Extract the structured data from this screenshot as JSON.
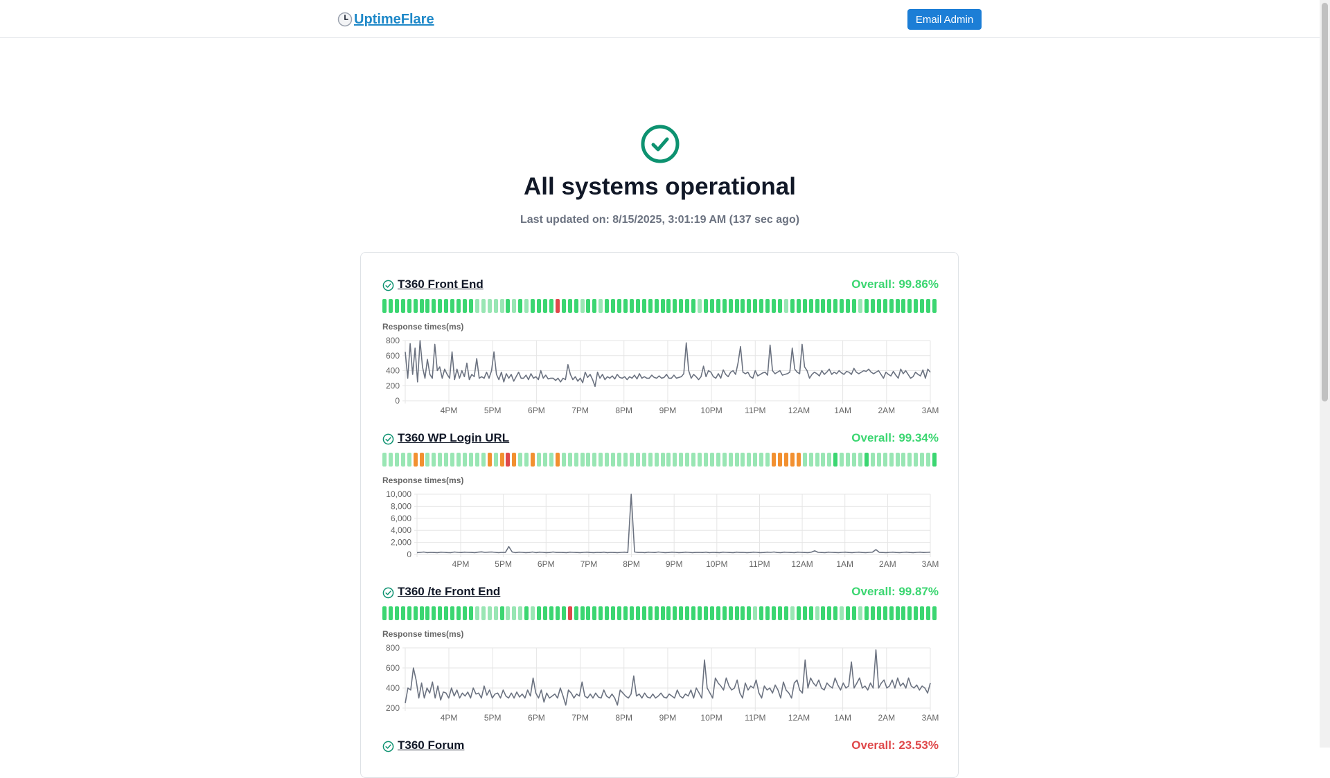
{
  "header": {
    "logo_icon": "clock-emoji-icon",
    "logo_text": "UptimeFlare",
    "email_button": "Email Admin"
  },
  "status": {
    "icon": "check-circle-icon",
    "title": "All systems operational",
    "last_updated": "Last updated on: 8/15/2025, 3:01:19 AM (137 sec ago)"
  },
  "colors": {
    "ok_green": "#3bd671",
    "light_green": "#99e6b4",
    "orange": "#f29030",
    "red": "#df484a",
    "accent_blue": "#1c7ed6",
    "line_gray": "#6b7280"
  },
  "monitors": [
    {
      "name": "T360 Front End",
      "overall": "Overall: 99.86%",
      "overall_color": "#3bd671",
      "uptime_bars": "GGGGGGGGGGGGGGGLLLLLGLGLGGGGRGGGLGGLGGGGGGGGGGGGGGGLGGGGGGGGGGGGGLGGGGGGGGGGGLGGGGGGG",
      "chart": {
        "label": "Response times(ms)",
        "y_ticks": [
          "800",
          "600",
          "400",
          "200",
          "0"
        ],
        "ylim": [
          0,
          800
        ],
        "x_ticks": [
          "4PM",
          "5PM",
          "6PM",
          "7PM",
          "8PM",
          "9PM",
          "10PM",
          "11PM",
          "12AM",
          "1AM",
          "2AM",
          "3AM"
        ],
        "values": [
          650,
          300,
          760,
          350,
          700,
          250,
          800,
          450,
          300,
          550,
          350,
          300,
          750,
          400,
          450,
          300,
          420,
          350,
          300,
          650,
          280,
          420,
          300,
          400,
          320,
          500,
          280,
          350,
          320,
          560,
          300,
          320,
          300,
          380,
          300,
          400,
          650,
          350,
          280,
          380,
          250,
          360,
          300,
          350,
          260,
          320,
          380,
          300,
          300,
          340,
          280,
          360,
          300,
          320,
          280,
          400,
          300,
          340,
          290,
          300,
          300,
          270,
          300,
          250,
          300,
          280,
          480,
          350,
          280,
          320,
          260,
          300,
          240,
          380,
          310,
          350,
          280,
          190,
          380,
          300,
          350,
          280,
          320,
          300,
          330,
          290,
          350,
          310,
          300,
          320,
          280,
          320,
          300,
          340,
          290,
          360,
          300,
          320,
          300,
          300,
          340,
          310,
          300,
          330,
          300,
          310,
          350,
          300,
          300,
          340,
          300,
          310,
          320,
          360,
          770,
          400,
          300,
          350,
          320,
          280,
          320,
          460,
          320,
          400,
          380,
          320,
          300,
          360,
          300,
          410,
          350,
          320,
          380,
          400,
          350,
          500,
          720,
          380,
          360,
          380,
          320,
          300,
          400,
          330,
          350,
          370,
          380,
          340,
          740,
          400,
          360,
          380,
          400,
          340,
          350,
          360,
          380,
          700,
          420,
          380,
          360,
          750,
          450,
          400,
          300,
          350,
          380,
          360,
          330,
          400,
          350,
          380,
          420,
          350,
          380,
          360,
          400,
          370,
          350,
          390,
          380,
          350,
          430,
          380,
          360,
          380,
          400,
          390,
          420,
          380,
          360,
          380,
          400,
          350,
          300,
          380,
          350,
          330,
          390,
          340,
          300,
          420,
          360,
          400,
          350,
          300,
          320,
          380,
          350,
          330,
          410,
          300,
          420,
          380
        ]
      }
    },
    {
      "name": "T360 WP Login URL",
      "overall": "Overall: 99.34%",
      "overall_color": "#3bd671",
      "uptime_bars": "LLLLLOOLLLLLLLLLLOLOROLLOLLLOLLLLLLLLLLLLLLLLLLLLLLLLLLLLLLLLLLOOOOOLLLLLGLLLLGLLLLLLLLLLG",
      "chart": {
        "label": "Response times(ms)",
        "y_ticks": [
          "10,000",
          "8,000",
          "6,000",
          "4,000",
          "2,000",
          "0"
        ],
        "ylim": [
          0,
          10000
        ],
        "x_ticks": [
          "4PM",
          "5PM",
          "6PM",
          "7PM",
          "8PM",
          "9PM",
          "10PM",
          "11PM",
          "12AM",
          "1AM",
          "2AM",
          "3AM"
        ],
        "values": [
          300,
          350,
          400,
          300,
          350,
          320,
          300,
          380,
          340,
          310,
          300,
          400,
          350,
          320,
          380,
          350,
          330,
          300,
          380,
          420,
          350,
          380,
          400,
          350,
          300,
          350,
          330,
          1300,
          400,
          300,
          380,
          350,
          300,
          320,
          400,
          300,
          380,
          350,
          300,
          320,
          400,
          330,
          350,
          320,
          300,
          380,
          350,
          320,
          300,
          350,
          380,
          320,
          300,
          350,
          320,
          380,
          300,
          350,
          320,
          300,
          350,
          380,
          320,
          10000,
          400,
          330,
          350,
          300,
          380,
          350,
          320,
          400,
          350,
          300,
          320,
          380,
          350,
          300,
          320,
          380,
          350,
          300,
          330,
          350,
          320,
          380,
          300,
          350,
          320,
          300,
          380,
          350,
          320,
          300,
          380,
          330,
          350,
          300,
          320,
          380,
          350,
          300,
          320,
          380,
          350,
          400,
          320,
          300,
          380,
          350,
          320,
          300,
          380,
          350,
          320,
          300,
          380,
          600,
          350,
          320,
          300,
          380,
          350,
          320,
          300,
          350,
          380,
          320,
          300,
          350,
          380,
          320,
          300,
          350,
          380,
          800,
          350,
          320,
          300,
          350,
          380,
          320,
          300,
          350,
          380,
          320,
          300,
          350,
          380,
          320,
          350,
          380
        ]
      }
    },
    {
      "name": "T360 /te Front End",
      "overall": "Overall: 99.87%",
      "overall_color": "#3bd671",
      "uptime_bars": "GGGGGGGGGGGGGGGLLLLGLLLGLGGGGGRGGGGGGGGGGGGGGGGGGGGGGGGGGGGGLGGGGGLGGGLGGGLGGLGGGGGGGGGGG",
      "chart": {
        "label": "Response times(ms)",
        "y_ticks": [
          "800",
          "600",
          "400",
          "200"
        ],
        "ylim": [
          200,
          800
        ],
        "x_ticks": [
          "4PM",
          "5PM",
          "6PM",
          "7PM",
          "8PM",
          "9PM",
          "10PM",
          "11PM",
          "12AM",
          "1AM",
          "2AM",
          "3AM"
        ],
        "values": [
          250,
          400,
          380,
          600,
          480,
          300,
          450,
          300,
          400,
          350,
          460,
          300,
          420,
          280,
          360,
          350,
          300,
          400,
          320,
          380,
          300,
          350,
          320,
          360,
          300,
          400,
          340,
          350,
          300,
          420,
          330,
          380,
          300,
          340,
          350,
          300,
          380,
          320,
          300,
          350,
          300,
          360,
          310,
          340,
          300,
          380,
          320,
          500,
          350,
          300,
          380,
          260,
          350,
          300,
          320,
          340,
          300,
          400,
          320,
          230,
          380,
          350,
          300,
          340,
          320,
          460,
          320,
          300,
          340,
          300,
          350,
          310,
          300,
          380,
          320,
          300,
          340,
          300,
          230,
          380,
          350,
          320,
          300,
          340,
          520,
          320,
          340,
          300,
          350,
          310,
          300,
          340,
          300,
          320,
          350,
          310,
          300,
          340,
          320,
          300,
          380,
          320,
          300,
          340,
          320,
          380,
          300,
          400,
          350,
          300,
          680,
          400,
          350,
          300,
          500,
          450,
          420,
          380,
          500,
          420,
          380,
          400,
          480,
          350,
          300,
          450,
          380,
          420,
          400,
          480,
          350,
          300,
          420,
          380,
          400,
          350,
          430,
          380,
          300,
          460,
          380,
          350,
          300,
          450,
          480,
          380,
          350,
          680,
          400,
          500,
          450,
          420,
          480,
          400,
          380,
          450,
          420,
          400,
          500,
          430,
          380,
          450,
          400,
          420,
          660,
          400,
          450,
          500,
          400,
          420,
          380,
          450,
          400,
          780,
          400,
          450,
          480,
          400,
          420,
          480,
          400,
          500,
          420,
          450,
          400,
          500,
          420,
          400,
          430,
          380,
          420,
          400,
          350,
          450
        ]
      }
    }
  ],
  "next_monitor": {
    "name": "T360 Forum",
    "overall": "Overall: 23.53%",
    "overall_color": "#df484a"
  }
}
